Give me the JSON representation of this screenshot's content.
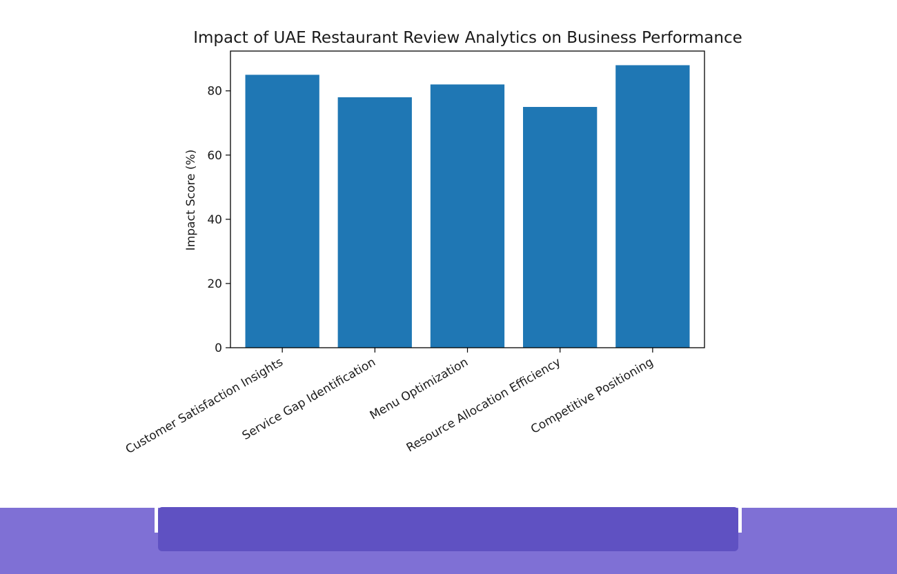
{
  "chart_data": {
    "type": "bar",
    "title": "Impact of UAE Restaurant Review Analytics on Business Performance",
    "xlabel": "",
    "ylabel": "Impact Score (%)",
    "categories": [
      "Customer Satisfaction Insights",
      "Service Gap Identification",
      "Menu Optimization",
      "Resource Allocation Efficiency",
      "Competitive Positioning"
    ],
    "values": [
      85,
      78,
      82,
      75,
      88
    ],
    "ylim": [
      0,
      92.4
    ],
    "yticks": [
      0,
      20,
      40,
      60,
      80
    ],
    "grid": false,
    "bar_color": "#1f77b4"
  },
  "footer": {
    "band_color": "#7f70d5",
    "bar_color": "#5f51c2"
  }
}
